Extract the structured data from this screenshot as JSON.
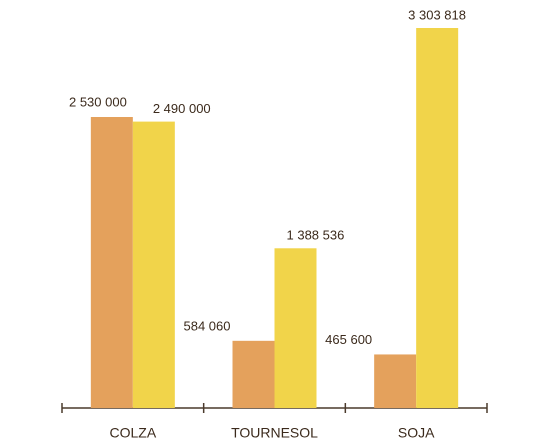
{
  "chart_data": {
    "type": "bar",
    "categories": [
      "COLZA",
      "TOURNESOL",
      "SOJA"
    ],
    "series": [
      {
        "color": "#e4a15c",
        "values": [
          2530000,
          584060,
          465600
        ],
        "value_labels": [
          "2 530 000",
          "584 060",
          "465 600"
        ]
      },
      {
        "color": "#f1d44a",
        "values": [
          2490000,
          1388536,
          3303818
        ],
        "value_labels": [
          "2 490 000",
          "1 388 536",
          "3 303 818"
        ]
      }
    ]
  }
}
